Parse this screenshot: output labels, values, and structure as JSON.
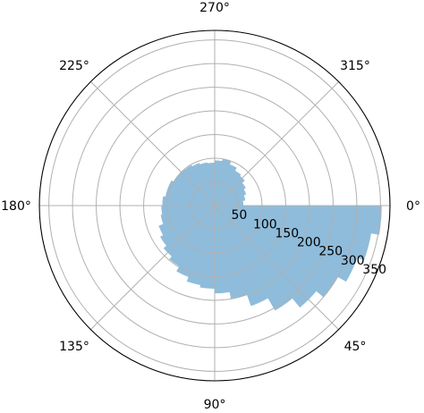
{
  "chart_data": {
    "type": "polar-bar",
    "title": "",
    "theta_direction": "clockwise",
    "theta_zero_location": "east",
    "theta_unit": "degrees",
    "theta_tick_labels": [
      "0°",
      "45°",
      "90°",
      "135°",
      "180°",
      "225°",
      "270°",
      "315°"
    ],
    "theta_ticks": [
      0,
      45,
      90,
      135,
      180,
      225,
      270,
      315
    ],
    "r_ticks": [
      50,
      100,
      150,
      200,
      250,
      300,
      350
    ],
    "r_tick_labels": [
      "50",
      "100",
      "150",
      "200",
      "250",
      "300",
      "350"
    ],
    "r_label_position_deg": 22.5,
    "rlim": [
      0,
      370
    ],
    "grid": true,
    "bar_color": "#8fbcdb",
    "bar_width_deg": 10,
    "series": [
      {
        "theta": [
          5,
          15,
          25,
          35,
          45,
          55,
          65,
          75,
          85,
          95,
          105,
          115,
          125,
          135,
          145,
          155,
          165,
          175,
          185,
          195,
          205,
          215,
          225,
          235,
          245,
          255,
          265,
          275,
          285,
          295,
          305,
          315,
          325,
          335,
          345,
          355
        ],
        "r": [
          352,
          335,
          320,
          300,
          280,
          255,
          225,
          200,
          185,
          175,
          170,
          160,
          148,
          140,
          132,
          125,
          115,
          112,
          110,
          105,
          105,
          100,
          100,
          98,
          95,
          92,
          90,
          95,
          100,
          92,
          85,
          82,
          75,
          70,
          65,
          60
        ]
      }
    ]
  }
}
